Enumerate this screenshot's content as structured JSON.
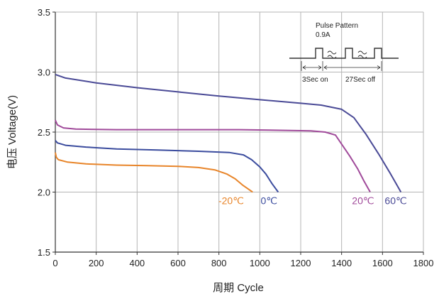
{
  "chart_data": {
    "type": "line",
    "title": "",
    "xlabel": "周期 Cycle",
    "ylabel": "电压 Voltage(V)",
    "xlim": [
      0,
      1800
    ],
    "ylim": [
      1.5,
      3.5
    ],
    "x_ticks": [
      0,
      200,
      400,
      600,
      800,
      1000,
      1200,
      1400,
      1600,
      1800
    ],
    "x_tick_labels": [
      "0",
      "200",
      "400",
      "600",
      "800",
      "1000",
      "1200",
      "1400",
      "1600",
      "1800"
    ],
    "y_ticks": [
      1.5,
      2.0,
      2.5,
      3.0,
      3.5
    ],
    "y_tick_labels": [
      "1.5",
      "2.0",
      "2.5",
      "3.0",
      "3.5"
    ],
    "grid": true,
    "legend": "none",
    "series": [
      {
        "name": "-20℃",
        "color": "#e8852a",
        "label_at": [
          860,
          1.93
        ],
        "points": [
          [
            0,
            2.33
          ],
          [
            5,
            2.29
          ],
          [
            15,
            2.27
          ],
          [
            60,
            2.25
          ],
          [
            150,
            2.235
          ],
          [
            300,
            2.225
          ],
          [
            450,
            2.22
          ],
          [
            600,
            2.215
          ],
          [
            700,
            2.205
          ],
          [
            780,
            2.185
          ],
          [
            840,
            2.15
          ],
          [
            880,
            2.11
          ],
          [
            915,
            2.06
          ],
          [
            940,
            2.03
          ],
          [
            965,
            2.0
          ]
        ]
      },
      {
        "name": "0℃",
        "color": "#3b4c9e",
        "label_at": [
          1045,
          1.93
        ],
        "points": [
          [
            0,
            2.43
          ],
          [
            10,
            2.41
          ],
          [
            50,
            2.39
          ],
          [
            150,
            2.375
          ],
          [
            300,
            2.36
          ],
          [
            500,
            2.35
          ],
          [
            700,
            2.34
          ],
          [
            850,
            2.33
          ],
          [
            920,
            2.31
          ],
          [
            960,
            2.27
          ],
          [
            1000,
            2.21
          ],
          [
            1030,
            2.15
          ],
          [
            1060,
            2.07
          ],
          [
            1090,
            2.0
          ]
        ]
      },
      {
        "name": "20℃",
        "color": "#a04a9a",
        "label_at": [
          1505,
          1.93
        ],
        "points": [
          [
            0,
            2.6
          ],
          [
            10,
            2.56
          ],
          [
            40,
            2.535
          ],
          [
            100,
            2.525
          ],
          [
            300,
            2.52
          ],
          [
            600,
            2.52
          ],
          [
            900,
            2.52
          ],
          [
            1100,
            2.515
          ],
          [
            1250,
            2.51
          ],
          [
            1320,
            2.5
          ],
          [
            1370,
            2.475
          ],
          [
            1400,
            2.4
          ],
          [
            1440,
            2.3
          ],
          [
            1480,
            2.19
          ],
          [
            1510,
            2.09
          ],
          [
            1540,
            2.0
          ]
        ]
      },
      {
        "name": "60℃",
        "color": "#4a4a96",
        "label_at": [
          1665,
          1.93
        ],
        "points": [
          [
            0,
            2.98
          ],
          [
            50,
            2.95
          ],
          [
            200,
            2.91
          ],
          [
            400,
            2.87
          ],
          [
            600,
            2.835
          ],
          [
            800,
            2.8
          ],
          [
            1000,
            2.77
          ],
          [
            1200,
            2.74
          ],
          [
            1300,
            2.725
          ],
          [
            1400,
            2.69
          ],
          [
            1460,
            2.62
          ],
          [
            1520,
            2.48
          ],
          [
            1580,
            2.32
          ],
          [
            1640,
            2.15
          ],
          [
            1690,
            2.0
          ]
        ]
      }
    ],
    "annotations": [
      {
        "text": "Pulse Pattern"
      },
      {
        "text": "0.9A"
      },
      {
        "text": "3Sec on"
      },
      {
        "text": "27Sec off"
      }
    ]
  }
}
